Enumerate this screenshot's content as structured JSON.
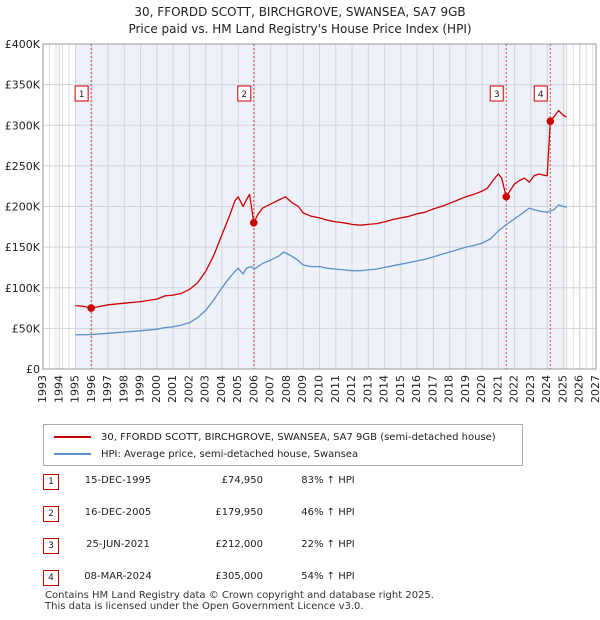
{
  "chart_data": {
    "type": "line",
    "title": [
      "30, FFORDD SCOTT, BIRCHGROVE, SWANSEA, SA7 9GB",
      "Price paid vs. HM Land Registry's House Price Index (HPI)"
    ],
    "xlim": [
      1993,
      2027
    ],
    "ylim": [
      0,
      400000
    ],
    "x_ticks": [
      "1993",
      "1994",
      "1995",
      "1996",
      "1997",
      "1998",
      "1999",
      "2000",
      "2001",
      "2002",
      "2003",
      "2004",
      "2005",
      "2006",
      "2007",
      "2008",
      "2009",
      "2010",
      "2011",
      "2012",
      "2013",
      "2014",
      "2015",
      "2016",
      "2017",
      "2018",
      "2019",
      "2020",
      "2021",
      "2022",
      "2023",
      "2024",
      "2025",
      "2026",
      "2027"
    ],
    "y_ticks": [
      {
        "value": 0,
        "label": "£0"
      },
      {
        "value": 50000,
        "label": "£50K"
      },
      {
        "value": 100000,
        "label": "£100K"
      },
      {
        "value": 150000,
        "label": "£150K"
      },
      {
        "value": 200000,
        "label": "£200K"
      },
      {
        "value": 250000,
        "label": "£250K"
      },
      {
        "value": 300000,
        "label": "£300K"
      },
      {
        "value": 350000,
        "label": "£350K"
      },
      {
        "value": 400000,
        "label": "£400K"
      }
    ],
    "data_range": [
      1995,
      2025.2
    ],
    "series": [
      {
        "name": "30, FFORDD SCOTT, BIRCHGROVE, SWANSEA, SA7 9GB (semi-detached house)",
        "color": "#cc0000",
        "points": [
          [
            1995.0,
            78000
          ],
          [
            1995.5,
            77000
          ],
          [
            1995.96,
            74950
          ],
          [
            1996.5,
            77000
          ],
          [
            1997,
            79000
          ],
          [
            1998,
            81000
          ],
          [
            1999,
            83000
          ],
          [
            2000,
            86000
          ],
          [
            2000.5,
            90000
          ],
          [
            2001,
            91000
          ],
          [
            2001.5,
            93000
          ],
          [
            2002,
            98000
          ],
          [
            2002.5,
            106000
          ],
          [
            2003,
            120000
          ],
          [
            2003.5,
            140000
          ],
          [
            2004,
            165000
          ],
          [
            2004.5,
            190000
          ],
          [
            2004.8,
            207000
          ],
          [
            2005.0,
            212000
          ],
          [
            2005.3,
            200000
          ],
          [
            2005.5,
            208000
          ],
          [
            2005.7,
            215000
          ],
          [
            2005.96,
            179950
          ],
          [
            2006.2,
            190000
          ],
          [
            2006.5,
            198000
          ],
          [
            2007,
            203000
          ],
          [
            2007.5,
            208000
          ],
          [
            2007.9,
            212000
          ],
          [
            2008.3,
            205000
          ],
          [
            2008.7,
            200000
          ],
          [
            2009.0,
            192000
          ],
          [
            2009.5,
            188000
          ],
          [
            2010,
            186000
          ],
          [
            2010.5,
            183000
          ],
          [
            2011,
            181000
          ],
          [
            2011.5,
            180000
          ],
          [
            2012,
            178000
          ],
          [
            2012.5,
            177000
          ],
          [
            2013,
            178000
          ],
          [
            2013.5,
            179000
          ],
          [
            2014,
            181000
          ],
          [
            2014.5,
            184000
          ],
          [
            2015,
            186000
          ],
          [
            2015.5,
            188000
          ],
          [
            2016,
            191000
          ],
          [
            2016.5,
            193000
          ],
          [
            2017,
            197000
          ],
          [
            2017.5,
            200000
          ],
          [
            2018,
            204000
          ],
          [
            2018.5,
            208000
          ],
          [
            2019,
            212000
          ],
          [
            2019.5,
            215000
          ],
          [
            2020,
            219000
          ],
          [
            2020.3,
            222000
          ],
          [
            2020.7,
            233000
          ],
          [
            2021.0,
            240000
          ],
          [
            2021.2,
            235000
          ],
          [
            2021.48,
            212000
          ],
          [
            2021.8,
            222000
          ],
          [
            2022.0,
            228000
          ],
          [
            2022.3,
            232000
          ],
          [
            2022.6,
            235000
          ],
          [
            2022.9,
            230000
          ],
          [
            2023.2,
            238000
          ],
          [
            2023.5,
            240000
          ],
          [
            2023.9,
            238000
          ],
          [
            2024.0,
            238000
          ],
          [
            2024.19,
            305000
          ],
          [
            2024.4,
            310000
          ],
          [
            2024.7,
            318000
          ],
          [
            2025.0,
            312000
          ],
          [
            2025.2,
            310000
          ]
        ]
      },
      {
        "name": "HPI: Average price, semi-detached house, Swansea",
        "color": "#5b8fc9",
        "points": [
          [
            1995.0,
            42000
          ],
          [
            1996,
            42500
          ],
          [
            1997,
            44000
          ],
          [
            1998,
            45500
          ],
          [
            1999,
            47000
          ],
          [
            2000,
            49000
          ],
          [
            2000.5,
            51000
          ],
          [
            2001,
            52000
          ],
          [
            2001.5,
            54000
          ],
          [
            2002,
            57000
          ],
          [
            2002.5,
            63000
          ],
          [
            2003,
            72000
          ],
          [
            2003.5,
            85000
          ],
          [
            2004,
            100000
          ],
          [
            2004.5,
            113000
          ],
          [
            2004.8,
            120000
          ],
          [
            2005.0,
            124000
          ],
          [
            2005.3,
            117000
          ],
          [
            2005.5,
            124000
          ],
          [
            2005.8,
            126000
          ],
          [
            2006.0,
            123000
          ],
          [
            2006.5,
            130000
          ],
          [
            2007,
            134000
          ],
          [
            2007.5,
            139000
          ],
          [
            2007.8,
            144000
          ],
          [
            2008.2,
            140000
          ],
          [
            2008.6,
            135000
          ],
          [
            2009.0,
            128000
          ],
          [
            2009.5,
            126000
          ],
          [
            2010,
            126000
          ],
          [
            2010.5,
            124000
          ],
          [
            2011,
            123000
          ],
          [
            2011.5,
            122000
          ],
          [
            2012,
            121000
          ],
          [
            2012.5,
            121000
          ],
          [
            2013,
            122000
          ],
          [
            2013.5,
            123000
          ],
          [
            2014,
            125000
          ],
          [
            2014.5,
            127000
          ],
          [
            2015,
            129000
          ],
          [
            2015.5,
            131000
          ],
          [
            2016,
            133000
          ],
          [
            2016.5,
            135000
          ],
          [
            2017,
            138000
          ],
          [
            2017.5,
            141000
          ],
          [
            2018,
            144000
          ],
          [
            2018.5,
            147000
          ],
          [
            2019,
            150000
          ],
          [
            2019.5,
            152000
          ],
          [
            2020,
            155000
          ],
          [
            2020.5,
            160000
          ],
          [
            2021.0,
            170000
          ],
          [
            2021.5,
            178000
          ],
          [
            2022.0,
            185000
          ],
          [
            2022.5,
            192000
          ],
          [
            2022.9,
            198000
          ],
          [
            2023.2,
            196000
          ],
          [
            2023.6,
            194000
          ],
          [
            2024.0,
            193000
          ],
          [
            2024.4,
            196000
          ],
          [
            2024.7,
            202000
          ],
          [
            2025.0,
            200000
          ],
          [
            2025.2,
            199000
          ]
        ]
      }
    ],
    "sales": [
      {
        "marker": "1",
        "x": 1995.96,
        "price": 74950,
        "date": "15-DEC-1995",
        "price_label": "£74,950",
        "hpi": "83% ↑ HPI"
      },
      {
        "marker": "2",
        "x": 2005.96,
        "price": 179950,
        "date": "16-DEC-2005",
        "price_label": "£179,950",
        "hpi": "46% ↑ HPI"
      },
      {
        "marker": "3",
        "x": 2021.48,
        "price": 212000,
        "date": "25-JUN-2021",
        "price_label": "£212,000",
        "hpi": "22% ↑ HPI"
      },
      {
        "marker": "4",
        "x": 2024.19,
        "price": 305000,
        "date": "08-MAR-2024",
        "price_label": "£305,000",
        "hpi": "54% ↑ HPI"
      }
    ]
  },
  "legend": {
    "items": [
      {
        "label": "30, FFORDD SCOTT, BIRCHGROVE, SWANSEA, SA7 9GB (semi-detached house)",
        "color": "#cc0000"
      },
      {
        "label": "HPI: Average price, semi-detached house, Swansea",
        "color": "#5b8fc9"
      }
    ]
  },
  "footer": {
    "line1": "Contains HM Land Registry data © Crown copyright and database right 2025.",
    "line2": "This data is licensed under the Open Government Licence v3.0."
  }
}
